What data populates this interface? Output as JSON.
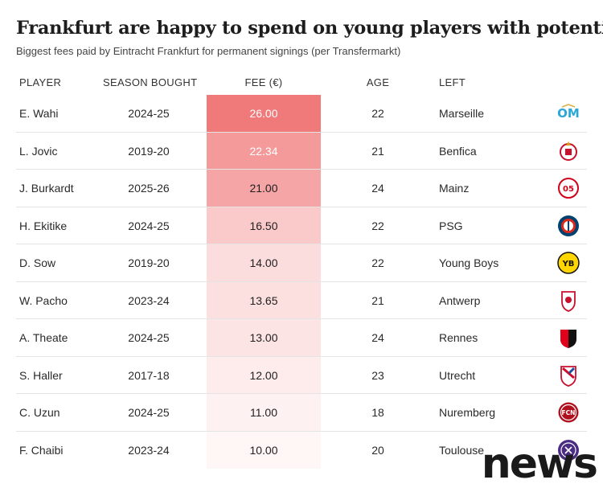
{
  "title": "Frankfurt are happy to spend on young players with potential",
  "subtitle": "Biggest fees paid by Eintracht Frankfurt for permanent signings (per Transfermarkt)",
  "columns": {
    "player": "PLAYER",
    "season": "SEASON BOUGHT",
    "fee": "FEE (€)",
    "age": "AGE",
    "left": "LEFT"
  },
  "rows": [
    {
      "player": "E. Wahi",
      "season": "2024-25",
      "fee": "26.00",
      "fee_value": 26.0,
      "age": "22",
      "left": "Marseille",
      "logo_icon": "marseille-logo-icon"
    },
    {
      "player": "L. Jovic",
      "season": "2019-20",
      "fee": "22.34",
      "fee_value": 22.34,
      "age": "21",
      "left": "Benfica",
      "logo_icon": "benfica-logo-icon"
    },
    {
      "player": "J. Burkardt",
      "season": "2025-26",
      "fee": "21.00",
      "fee_value": 21.0,
      "age": "24",
      "left": "Mainz",
      "logo_icon": "mainz-logo-icon"
    },
    {
      "player": "H. Ekitike",
      "season": "2024-25",
      "fee": "16.50",
      "fee_value": 16.5,
      "age": "22",
      "left": "PSG",
      "logo_icon": "psg-logo-icon"
    },
    {
      "player": "D. Sow",
      "season": "2019-20",
      "fee": "14.00",
      "fee_value": 14.0,
      "age": "22",
      "left": "Young Boys",
      "logo_icon": "young-boys-logo-icon"
    },
    {
      "player": "W. Pacho",
      "season": "2023-24",
      "fee": "13.65",
      "fee_value": 13.65,
      "age": "21",
      "left": "Antwerp",
      "logo_icon": "antwerp-logo-icon"
    },
    {
      "player": "A. Theate",
      "season": "2024-25",
      "fee": "13.00",
      "fee_value": 13.0,
      "age": "24",
      "left": "Rennes",
      "logo_icon": "rennes-logo-icon"
    },
    {
      "player": "S. Haller",
      "season": "2017-18",
      "fee": "12.00",
      "fee_value": 12.0,
      "age": "23",
      "left": "Utrecht",
      "logo_icon": "utrecht-logo-icon"
    },
    {
      "player": "C. Uzun",
      "season": "2024-25",
      "fee": "11.00",
      "fee_value": 11.0,
      "age": "18",
      "left": "Nuremberg",
      "logo_icon": "nuremberg-logo-icon"
    },
    {
      "player": "F. Chaibi",
      "season": "2023-24",
      "fee": "10.00",
      "fee_value": 10.0,
      "age": "20",
      "left": "Toulouse",
      "logo_icon": "toulouse-logo-icon"
    }
  ],
  "colors": {
    "fee_high": "#f07a7a",
    "fee_low": "#fff6f6",
    "fee_text_light": "#ffffff",
    "fee_text_dark": "#1f1f1f"
  },
  "watermark": "news"
}
